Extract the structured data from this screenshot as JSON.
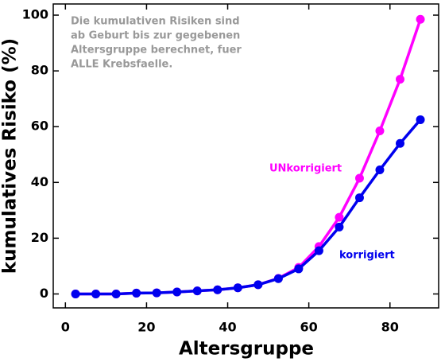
{
  "chart_data": {
    "type": "line",
    "xlabel": "Altersgruppe",
    "ylabel": "kumulatives Risiko (%)",
    "annotation": [
      "Die kumulativen Risiken sind",
      "ab Geburt bis zur gegebenen",
      "Altersgruppe berechnet, fuer",
      "ALLE Krebsfaelle."
    ],
    "x": [
      2.5,
      7.5,
      12.5,
      17.5,
      22.5,
      27.5,
      32.5,
      37.5,
      42.5,
      47.5,
      52.5,
      57.5,
      62.5,
      67.5,
      72.5,
      77.5,
      82.5,
      87.5
    ],
    "series": [
      {
        "name": "UNkorrigiert",
        "color": "#ff00ff",
        "values": [
          0,
          0,
          0,
          0.3,
          0.4,
          0.7,
          1.1,
          1.5,
          2.2,
          3.3,
          5.6,
          9.5,
          17,
          27.5,
          41.5,
          58.5,
          77,
          98.5
        ]
      },
      {
        "name": "korrigiert",
        "color": "#0000ee",
        "values": [
          0,
          0,
          0,
          0.3,
          0.4,
          0.7,
          1.1,
          1.5,
          2.2,
          3.3,
          5.5,
          9,
          15.5,
          24,
          34.5,
          44.5,
          54,
          62.5
        ]
      }
    ],
    "xlim": [
      -3,
      92
    ],
    "xticks": [
      0,
      20,
      40,
      60,
      80
    ],
    "ylim": [
      -5,
      104
    ],
    "yticks": [
      0,
      20,
      40,
      60,
      80,
      100
    ],
    "grid": false
  }
}
